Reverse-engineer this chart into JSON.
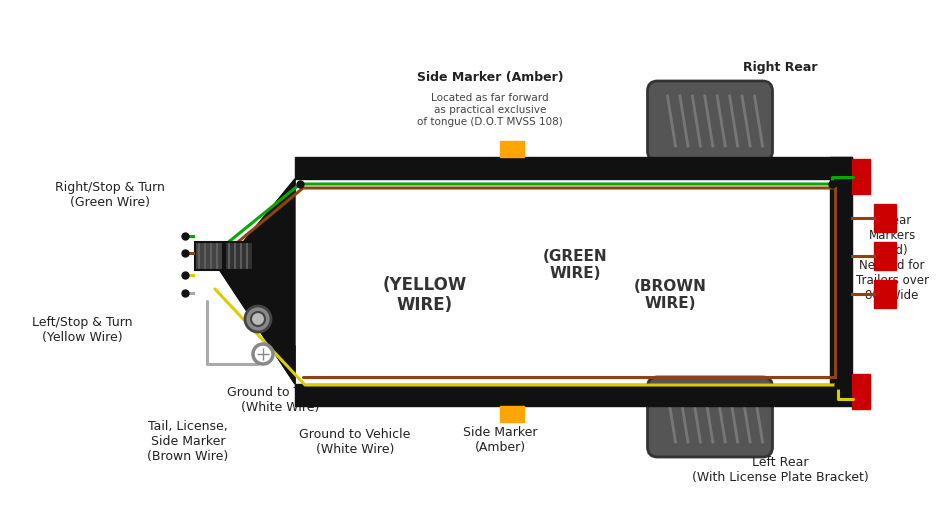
{
  "bg_color": "#ffffff",
  "trailer_frame_color": "#111111",
  "wire_colors": {
    "green": "#00aa00",
    "yellow": "#ddcc00",
    "brown": "#8B4513",
    "white": "#bbbbbb",
    "red": "#cc0000",
    "amber": "#FFA500"
  },
  "labels": {
    "right_stop_turn": "Right/Stop & Turn\n(Green Wire)",
    "left_stop_turn": "Left/Stop & Turn\n(Yellow Wire)",
    "tail_license": "Tail, License,\nSide Marker\n(Brown Wire)",
    "ground_trailer": "Ground to Trailer\n(White Wire)",
    "ground_vehicle": "Ground to Vehicle\n(White Wire)",
    "side_marker_top": "Side Marker (Amber)",
    "side_marker_top_sub": "Located as far forward\nas practical exclusive\nof tongue (D.O.T MVSS 108)",
    "side_marker_bottom": "Side Marker\n(Amber)",
    "right_rear": "Right Rear",
    "left_rear": "Left Rear\n(With License Plate Bracket)",
    "rear_markers": "3 Rear\nMarkers\n(Red)\nNeeded for\nTrailers over\n80\" Wide",
    "green_wire": "(GREEN\nWIRE)",
    "yellow_wire": "(YELLOW\nWIRE)",
    "brown_wire": "(BROWN\nWIRE)"
  }
}
